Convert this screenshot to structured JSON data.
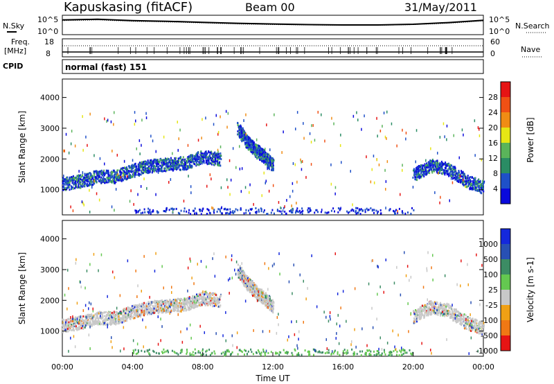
{
  "header": {
    "station": "Kapuskasing (fitACF)",
    "beam": "Beam 00",
    "date": "31/May/2011"
  },
  "strip_labels": {
    "nsky": "N.Sky",
    "nsearch": "N.Search",
    "freq_line1": "Freq.",
    "freq_line2": "[MHz]",
    "nave": "Nave",
    "cpid": "CPID",
    "cpid_value": "normal (fast) 151"
  },
  "noise_axis": {
    "top_label": "10^5",
    "bottom_label": "10^0"
  },
  "freq_axis": {
    "top_label": "18",
    "bottom_label": "8"
  },
  "nave_axis": {
    "top_label": "60",
    "bottom_label": "0"
  },
  "chart_data": [
    {
      "type": "line",
      "title": "",
      "xlabel": "",
      "ylabel": "",
      "series": [
        {
          "name": "N.Sky",
          "x": [
            0,
            2,
            4,
            6,
            8,
            10,
            12,
            14,
            16,
            18,
            20,
            22,
            24
          ],
          "y": [
            4.0,
            4.2,
            3.8,
            3.6,
            3.3,
            3.0,
            2.8,
            2.6,
            2.5,
            2.5,
            2.7,
            3.2,
            3.9
          ]
        },
        {
          "name": "N.Search",
          "x": [
            0,
            2,
            4,
            6,
            8,
            10,
            12,
            14,
            16,
            18,
            20,
            22,
            24
          ],
          "y": [
            3.8,
            4.0,
            3.6,
            3.4,
            3.1,
            2.8,
            2.6,
            2.5,
            2.4,
            2.4,
            2.6,
            3.0,
            3.7
          ]
        }
      ],
      "ylim": [
        0,
        5
      ]
    },
    {
      "type": "line",
      "series": [
        {
          "name": "Freq.",
          "x": [
            0,
            6,
            12,
            18,
            24
          ],
          "y": [
            10.5,
            10.5,
            10.5,
            10.5,
            10.5
          ]
        },
        {
          "name": "Nave",
          "x": [
            0,
            6,
            12,
            18,
            24
          ],
          "y": [
            30,
            30,
            30,
            30,
            30
          ]
        }
      ],
      "ylim": [
        8,
        18
      ]
    },
    {
      "type": "heatmap",
      "title": "Power",
      "xlabel": "",
      "ylabel": "Slant Range [km]",
      "yticks": [
        "1000",
        "2000",
        "3000",
        "4000"
      ],
      "ylim": [
        180,
        4600
      ],
      "xlim": [
        0,
        24
      ],
      "colorbar_label": "Power [dB]",
      "colorbar_ticks": [
        "4",
        "8",
        "12",
        "16",
        "20",
        "24",
        "28"
      ],
      "colorbar_colors": [
        "#0a0adc",
        "#1e50c8",
        "#2a8c64",
        "#5ab45a",
        "#e6e614",
        "#f08c14",
        "#f05014",
        "#e61414"
      ],
      "bands": [
        {
          "x": [
            0,
            1,
            2,
            3,
            4,
            5,
            6,
            7,
            8,
            9
          ],
          "range": [
            1200,
            1300,
            1450,
            1450,
            1650,
            1800,
            1850,
            1900,
            2100,
            2000
          ]
        },
        {
          "x": [
            20,
            21,
            22,
            23,
            24
          ],
          "range": [
            1500,
            1800,
            1700,
            1300,
            1100
          ]
        },
        {
          "x": [
            10,
            10.5,
            11,
            11.5,
            12
          ],
          "range": [
            3000,
            2600,
            2300,
            2100,
            1800
          ]
        }
      ],
      "ground_scatter_range": 300
    },
    {
      "type": "heatmap",
      "title": "Velocity",
      "xlabel": "Time UT",
      "ylabel": "Slant Range [km]",
      "xticks": [
        "00:00",
        "04:00",
        "08:00",
        "12:00",
        "16:00",
        "20:00",
        "00:00"
      ],
      "yticks": [
        "1000",
        "2000",
        "3000",
        "4000"
      ],
      "ylim": [
        180,
        4600
      ],
      "xlim": [
        0,
        24
      ],
      "colorbar_label": "Velocity [m s-1]",
      "colorbar_ticks": [
        "1000",
        "500",
        "100",
        "25",
        "-25",
        "-100",
        "-500",
        "-1000"
      ],
      "colorbar_colors": [
        "#1428dc",
        "#2850b4",
        "#3c8c64",
        "#64c850",
        "#c8c8c8",
        "#f0a014",
        "#f07814",
        "#e61414"
      ]
    }
  ]
}
